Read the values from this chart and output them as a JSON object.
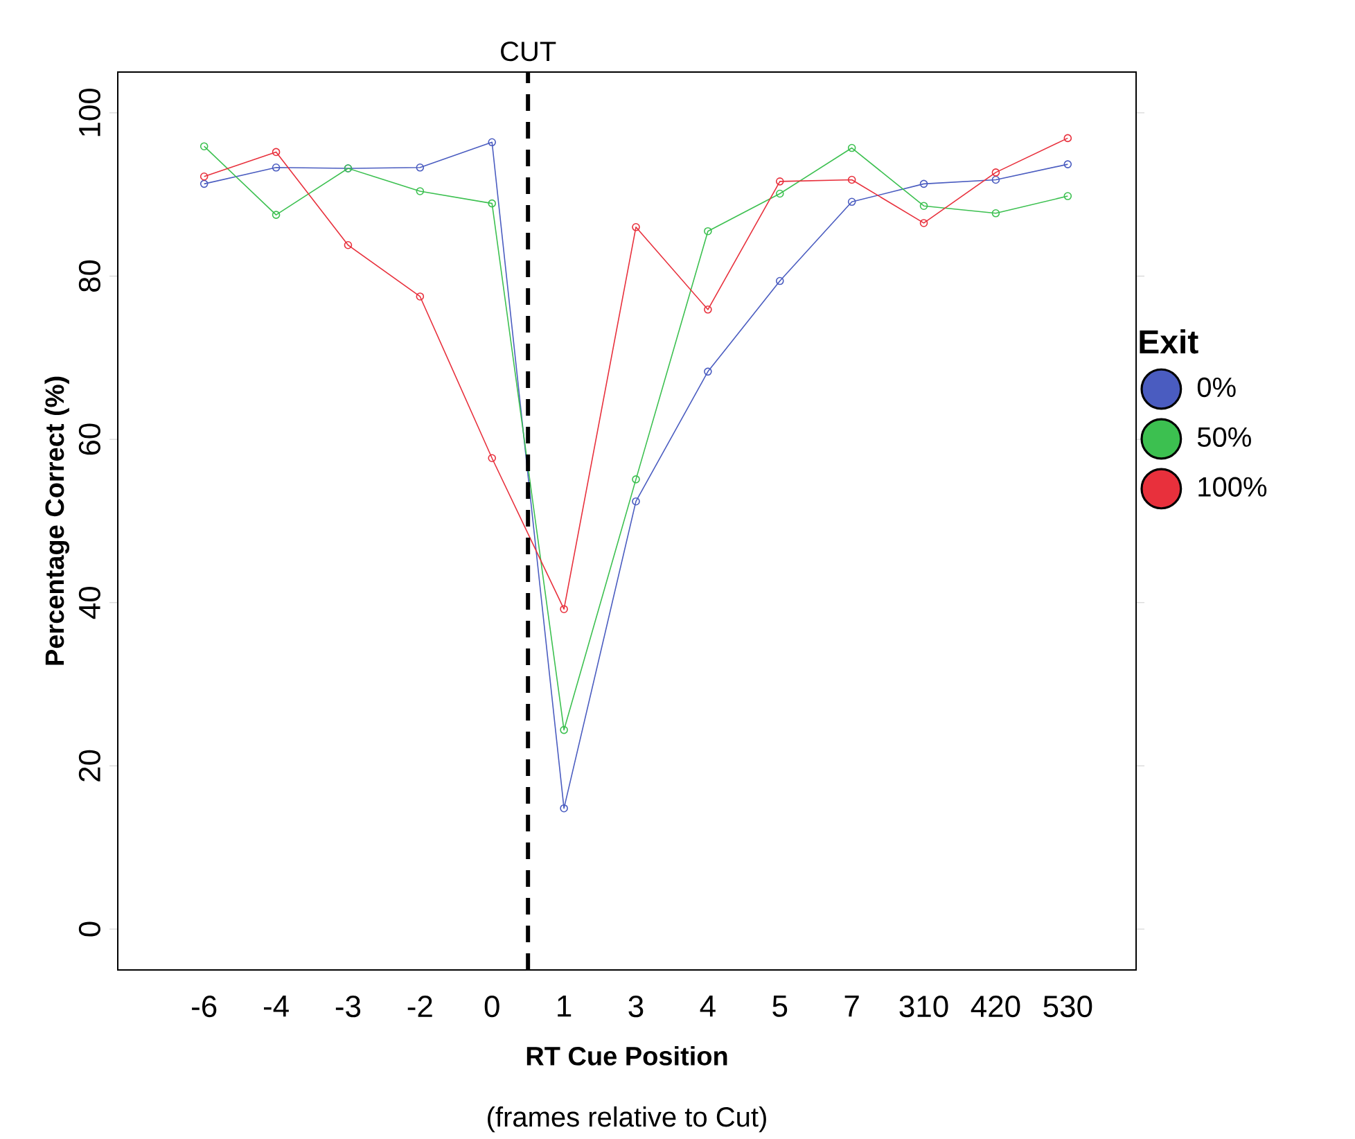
{
  "chart_data": {
    "type": "line",
    "xlabel": "**RT Cue Position**",
    "ylabel": "Percentage Correct (%)",
    "legend_title": "Exit",
    "annotations": [
      "(frames relative to Cut)",
      "CUT"
    ],
    "categories": [
      "-6",
      "-4",
      "-3",
      "-2",
      "0",
      "1",
      "3",
      "4",
      "5",
      "7",
      "310",
      "420",
      "530"
    ],
    "series": [
      {
        "name": "0%",
        "color": "#4a5cc0",
        "values": [
          91.3,
          93.3,
          93.2,
          93.3,
          96.4,
          14.8,
          52.4,
          68.3,
          79.4,
          89.1,
          91.3,
          91.8,
          93.7
        ]
      },
      {
        "name": "50%",
        "color": "#3cc050",
        "values": [
          95.9,
          87.5,
          93.2,
          90.4,
          88.9,
          24.4,
          55.1,
          85.5,
          90.1,
          95.7,
          88.6,
          87.7,
          89.8
        ]
      },
      {
        "name": "100%",
        "color": "#e8303c",
        "values": [
          92.2,
          95.2,
          83.8,
          77.5,
          57.7,
          39.2,
          86.0,
          75.9,
          91.6,
          91.8,
          86.5,
          92.7,
          96.9
        ]
      }
    ],
    "ylim": [
      -5,
      105
    ],
    "yticks": [
      0,
      20,
      40,
      60,
      80,
      100
    ],
    "legend": "right",
    "marker": "circle",
    "line_style": "solid"
  }
}
